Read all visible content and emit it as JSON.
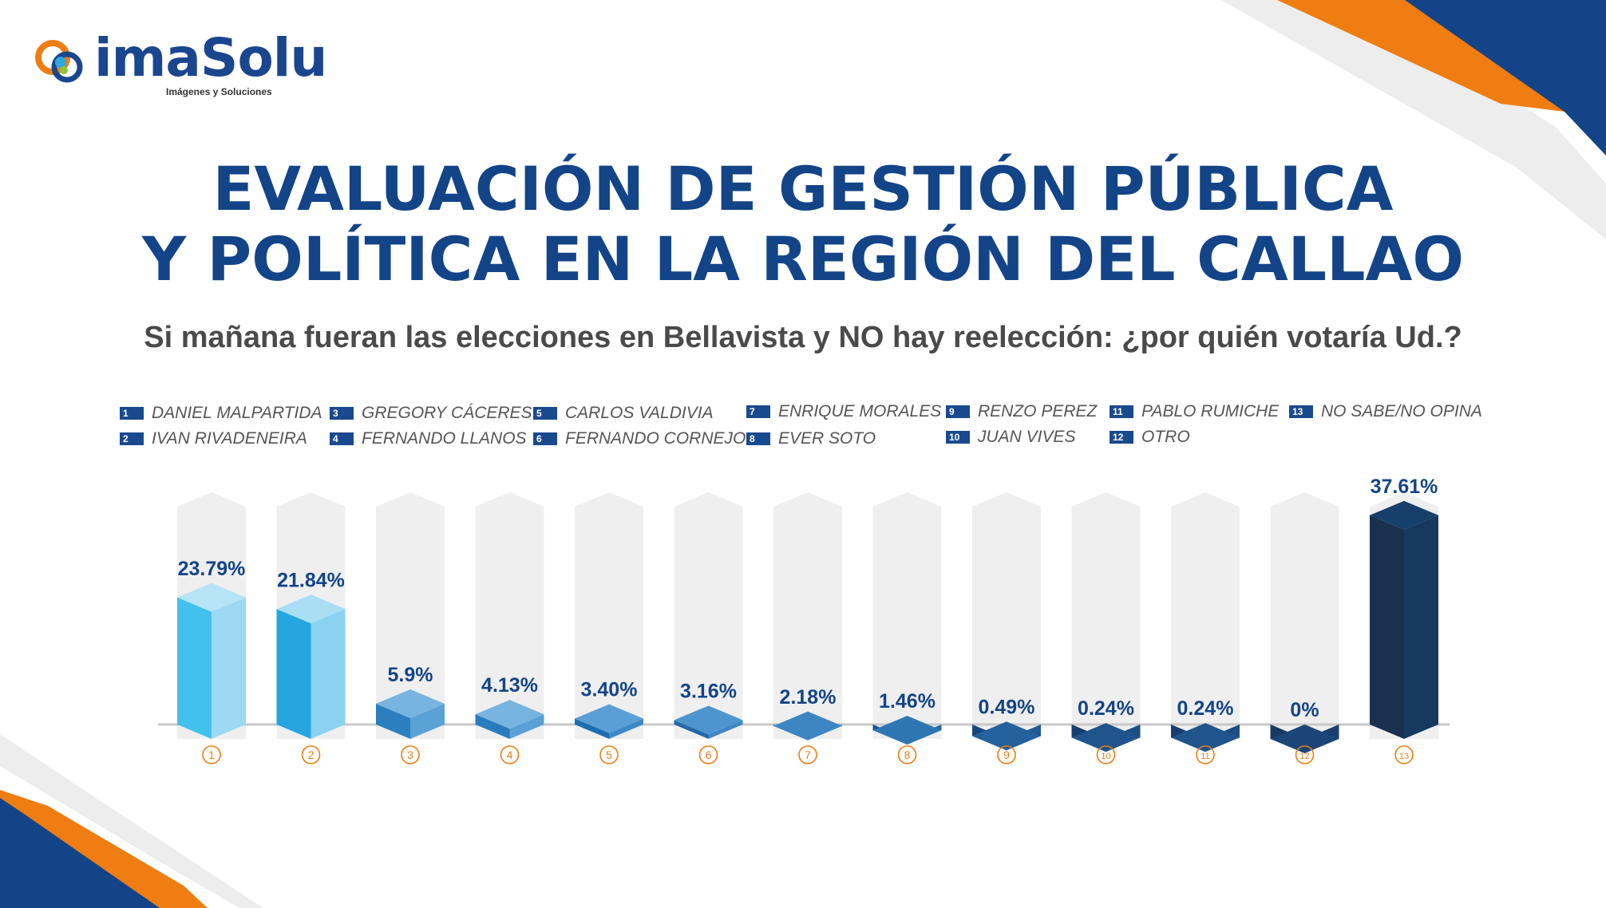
{
  "brand": {
    "name": "imaSolu",
    "tagline": "Imágenes y Soluciones"
  },
  "header": {
    "title_line1": "EVALUACIÓN DE GESTIÓN PÚBLICA",
    "title_line2": "Y POLÍTICA EN LA REGIÓN DEL CALLAO",
    "subtitle": "Si mañana fueran las elecciones en Bellavista y NO hay reelección: ¿por quién votaría Ud.?"
  },
  "colors": {
    "navy": "#134488",
    "orange": "#ef7d12",
    "light_gray": "#ececec"
  },
  "legend": [
    {
      "num": "1",
      "label": "DANIEL MALPARTIDA"
    },
    {
      "num": "2",
      "label": "IVAN RIVADENEIRA"
    },
    {
      "num": "3",
      "label": "GREGORY CÁCERES"
    },
    {
      "num": "4",
      "label": "FERNANDO LLANOS"
    },
    {
      "num": "5",
      "label": "CARLOS VALDIVIA"
    },
    {
      "num": "6",
      "label": "FERNANDO CORNEJO"
    },
    {
      "num": "7",
      "label": "ENRIQUE MORALES"
    },
    {
      "num": "8",
      "label": "EVER SOTO"
    },
    {
      "num": "9",
      "label": "RENZO PEREZ"
    },
    {
      "num": "10",
      "label": "JUAN VIVES"
    },
    {
      "num": "11",
      "label": "PABLO RUMICHE"
    },
    {
      "num": "12",
      "label": "OTRO"
    },
    {
      "num": "13",
      "label": "NO SABE/NO OPINA"
    }
  ],
  "chart_data": {
    "type": "bar",
    "categories": [
      "1",
      "2",
      "3",
      "4",
      "5",
      "6",
      "7",
      "8",
      "9",
      "10",
      "11",
      "12",
      "13"
    ],
    "values": [
      23.79,
      21.84,
      5.9,
      4.13,
      3.4,
      3.16,
      2.18,
      1.46,
      0.49,
      0.24,
      0.24,
      0,
      37.61
    ],
    "value_labels": [
      "23.79%",
      "21.84%",
      "5.9%",
      "4.13%",
      "3.40%",
      "3.16%",
      "2.18%",
      "1.46%",
      "0.49%",
      "0.24%",
      "0.24%",
      "0%",
      "37.61%"
    ],
    "ylim": [
      0,
      40
    ],
    "bar_colors": [
      {
        "front": "#43c1ee",
        "side": "#9dd9f2",
        "top": "#b7e4f6"
      },
      {
        "front": "#25a6df",
        "side": "#8bd2f1",
        "top": "#a9def4"
      },
      {
        "front": "#2b7fbf",
        "side": "#5aa1d6",
        "top": "#77b4e0"
      },
      {
        "front": "#2a7bbd",
        "side": "#59a0d6",
        "top": "#77b4e0"
      },
      {
        "front": "#1f6fb0",
        "side": "#3e8ac8",
        "top": "#5aa0d6"
      },
      {
        "front": "#2369a9",
        "side": "#3f86c2",
        "top": "#4f95cd"
      },
      {
        "front": "#1d5e9f",
        "side": "#2f78b6",
        "top": "#3d86c2"
      },
      {
        "front": "#1a5290",
        "side": "#236aa8",
        "top": "#2d76b3"
      },
      {
        "front": "#18467f",
        "side": "#1f5a95",
        "top": "#25619c"
      },
      {
        "front": "#173e70",
        "side": "#1b4d85",
        "top": "#1f558c"
      },
      {
        "front": "#173e70",
        "side": "#1b4d85",
        "top": "#1f558c"
      },
      {
        "front": "#163a66",
        "side": "#18406f",
        "top": "#1b4577"
      },
      {
        "front": "#19304f",
        "side": "#15395f",
        "top": "#163f69"
      }
    ]
  }
}
